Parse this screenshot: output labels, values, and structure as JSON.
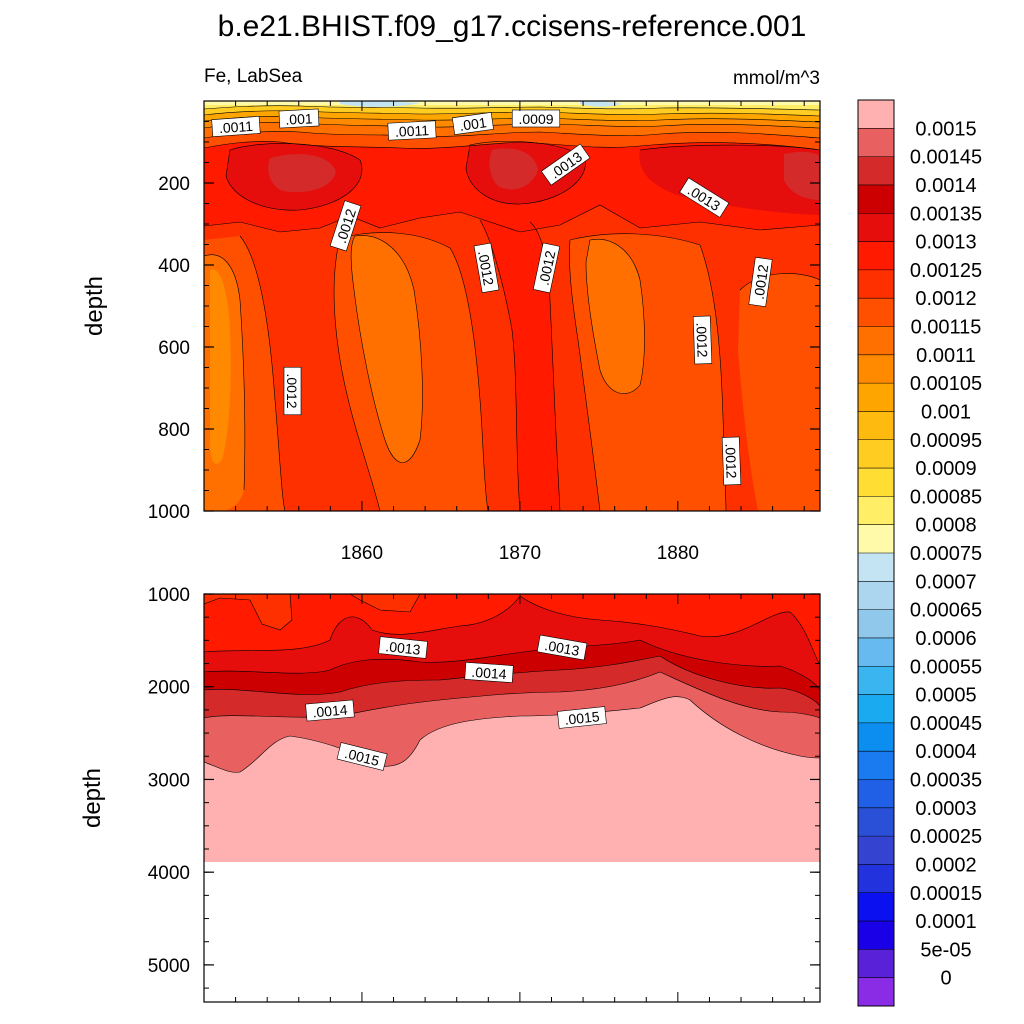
{
  "chart_data": {
    "type": "contour",
    "title": "b.e21.BHIST.f09_g17.ccisens-reference.001",
    "left_subtitle": "Fe, LabSea",
    "right_subtitle": "mmol/m^3",
    "panels": [
      {
        "name": "upper",
        "ylabel": "depth",
        "ylim": [
          0,
          1000
        ],
        "yticks": [
          "200",
          "400",
          "600",
          "800",
          "1000"
        ],
        "xlim": [
          1850,
          1889
        ],
        "xticks": [
          "1860",
          "1870",
          "1880"
        ],
        "contour_labels": [
          ".0011",
          ".001",
          ".0011",
          ".001",
          ".0009",
          ".0013",
          ".0013",
          ".0012",
          ".0012",
          ".0012",
          ".0012",
          ".0012",
          ".0012",
          ".0012"
        ]
      },
      {
        "name": "lower",
        "ylabel": "depth",
        "ylim": [
          1000,
          5400
        ],
        "yticks": [
          "1000",
          "2000",
          "3000",
          "4000",
          "5000"
        ],
        "xlim": [
          1850,
          1889
        ],
        "contour_labels": [
          ".0013",
          ".0013",
          ".0014",
          ".0014",
          ".0015",
          ".0015"
        ]
      }
    ],
    "colorbar": {
      "labels": [
        "0.0015",
        "0.00145",
        "0.0014",
        "0.00135",
        "0.0013",
        "0.00125",
        "0.0012",
        "0.00115",
        "0.0011",
        "0.00105",
        "0.001",
        "0.00095",
        "0.0009",
        "0.00085",
        "0.0008",
        "0.00075",
        "0.0007",
        "0.00065",
        "0.0006",
        "0.00055",
        "0.0005",
        "0.00045",
        "0.0004",
        "0.00035",
        "0.0003",
        "0.00025",
        "0.0002",
        "0.00015",
        "0.0001",
        "5e-05",
        "0"
      ],
      "colors": [
        "#ffb1b1",
        "#e96060",
        "#d42a2a",
        "#cc0000",
        "#e60d0d",
        "#ff1a00",
        "#ff3000",
        "#ff5000",
        "#ff7000",
        "#ff8a00",
        "#ffa500",
        "#ffba10",
        "#ffcc22",
        "#ffdd33",
        "#ffee66",
        "#fffaaa",
        "#c4e4f4",
        "#acd6f0",
        "#90c8ec",
        "#66baf0",
        "#3bb5f0",
        "#19aaf0",
        "#0c8df0",
        "#1a7af0",
        "#2060e6",
        "#2b50d8",
        "#3544d0",
        "#2233dd",
        "#0a10f0",
        "#1a00e6",
        "#5a22d8",
        "#8a2be6"
      ]
    }
  }
}
